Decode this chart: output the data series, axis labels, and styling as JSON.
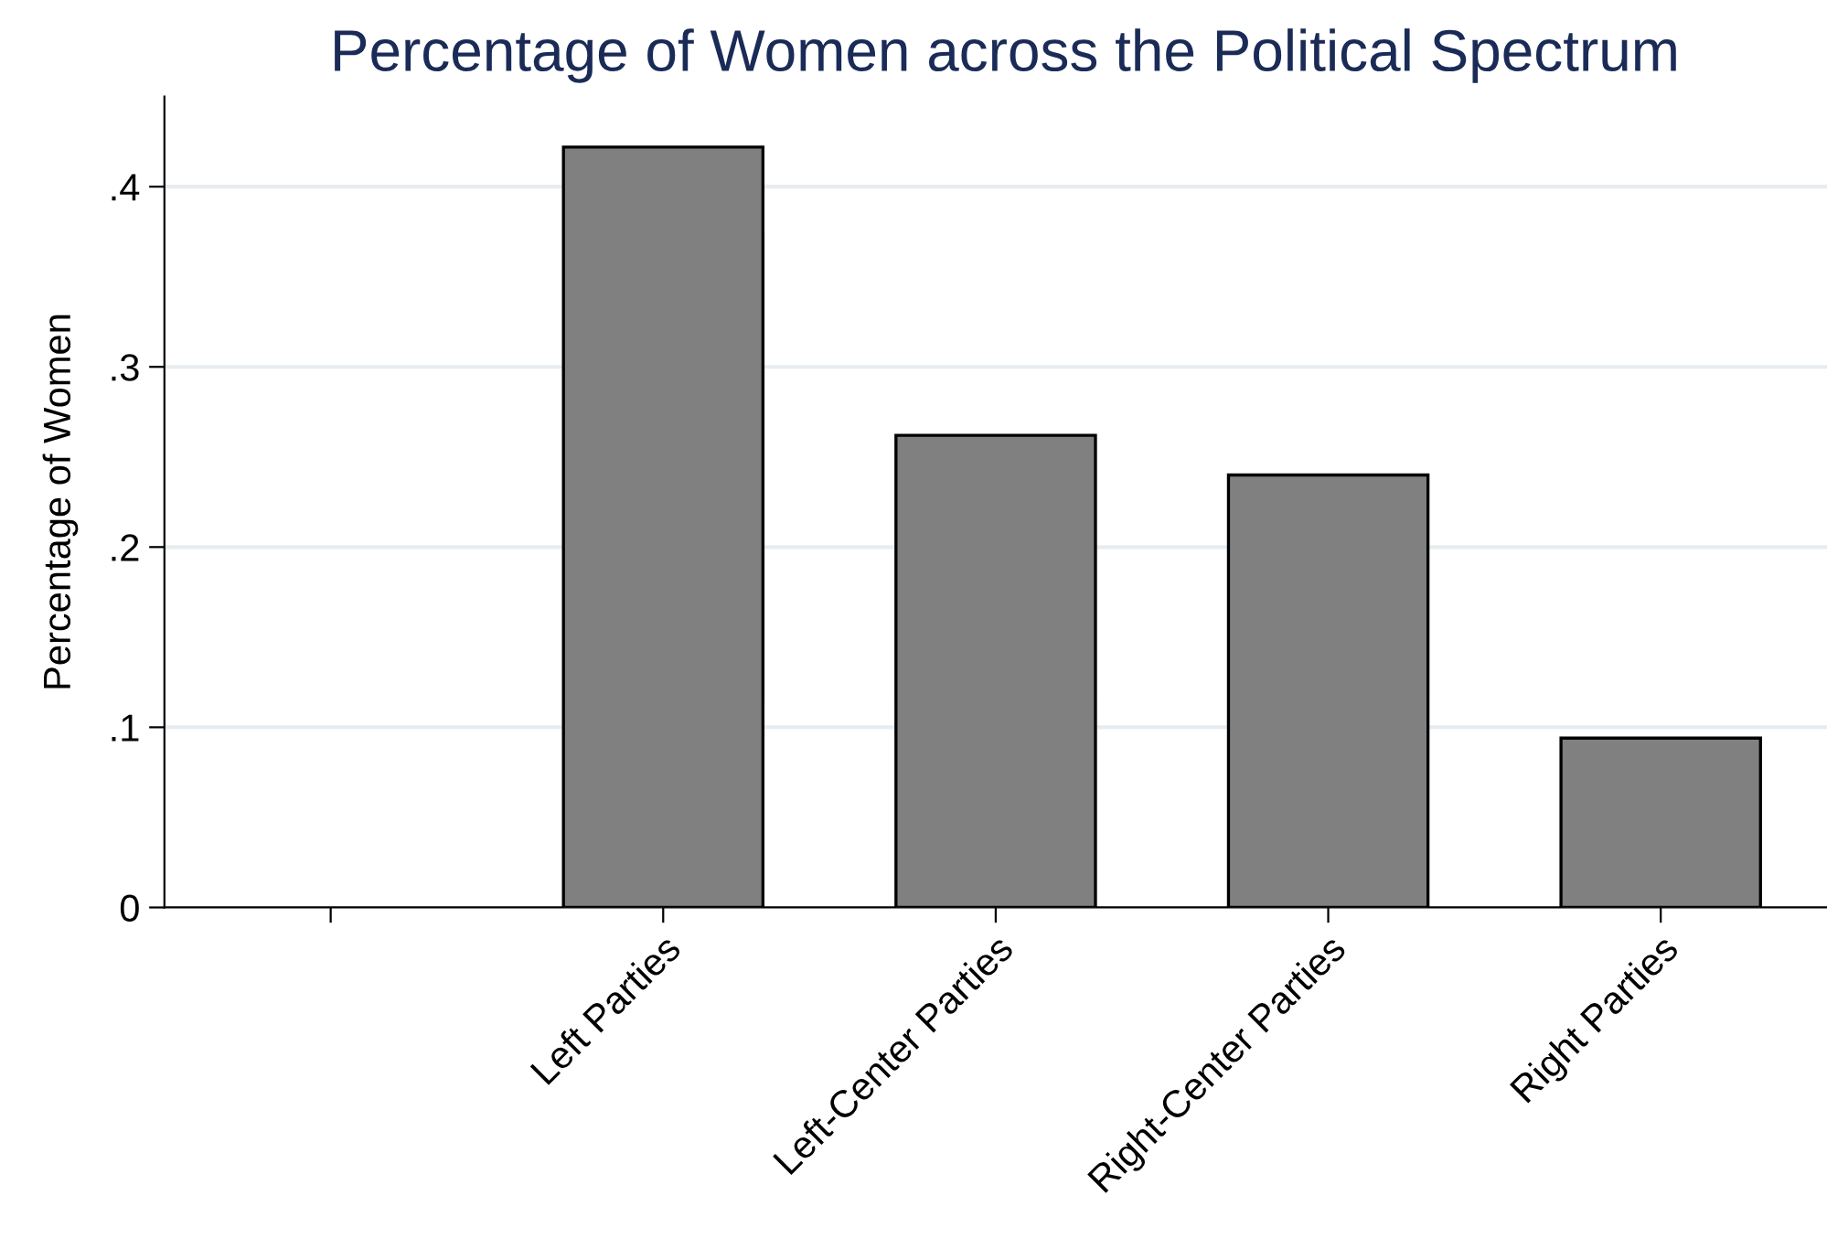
{
  "chart_data": {
    "type": "bar",
    "title": "Percentage of Women across the Political Spectrum",
    "ylabel": "Percentage of Women",
    "categories": [
      null,
      "Left Parties",
      "Left-Center Parties",
      "Right-Center Parties",
      "Right Parties"
    ],
    "values": [
      null,
      0.422,
      0.262,
      0.24,
      0.094
    ],
    "color": "#808080",
    "ylim": [
      0,
      0.45
    ],
    "yticks": [
      0,
      {
        "value": 0.1,
        "label": ".1"
      },
      {
        "value": 0.2,
        "label": ".2"
      },
      {
        "value": 0.3,
        "label": ".3"
      },
      {
        "value": 0.4,
        "label": ".4"
      }
    ],
    "grid": "y"
  }
}
